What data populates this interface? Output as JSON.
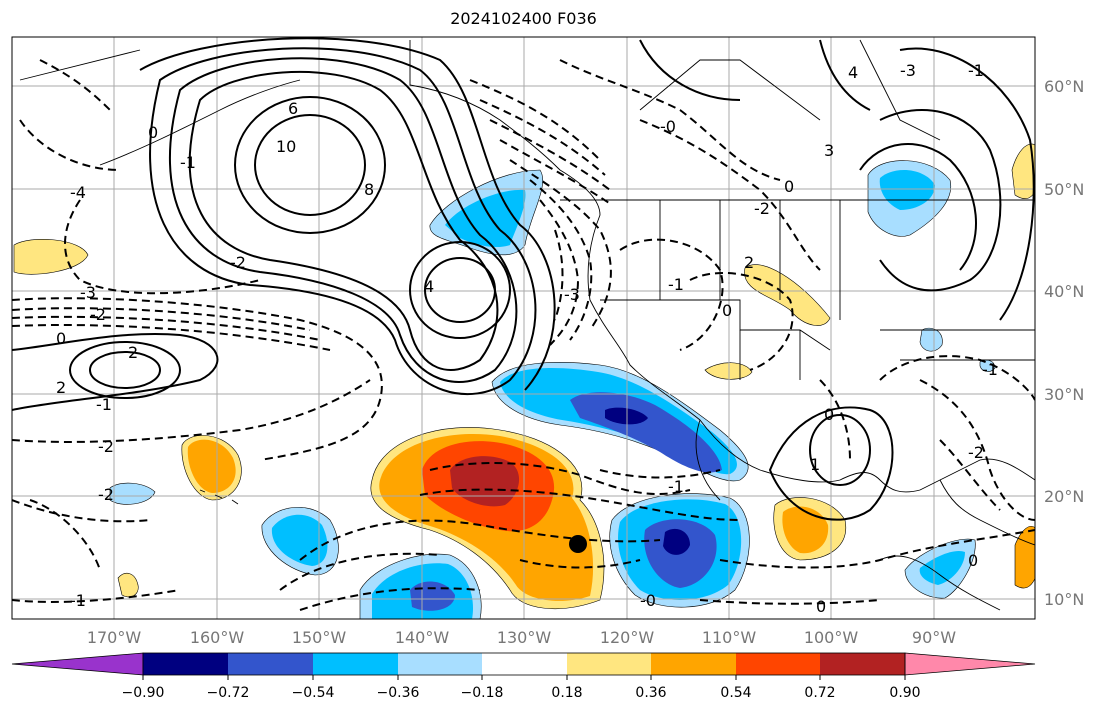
{
  "title": "2024102400 F036",
  "map": {
    "latitude_labels": [
      "60°N",
      "50°N",
      "40°N",
      "30°N",
      "20°N",
      "10°N"
    ],
    "longitude_labels": [
      "170°W",
      "160°W",
      "150°W",
      "140°W",
      "130°W",
      "120°W",
      "110°W",
      "100°W",
      "90°W"
    ],
    "marker": "storm-position-dot",
    "contour_labels": [
      "10",
      "8",
      "6",
      "4",
      "2",
      "0",
      "-4",
      "-3",
      "-2",
      "-1",
      "0",
      "-2",
      "-1",
      "2",
      "0",
      "-2",
      "-3",
      "-1",
      "-0",
      "2",
      "-1",
      "0",
      "-2",
      "-1",
      "0",
      "-3",
      "-1",
      "0",
      "-2",
      "4",
      "3",
      "1",
      "0",
      "-2",
      "-1",
      "-0"
    ]
  },
  "colorbar": {
    "tick_labels": [
      "−0.90",
      "−0.72",
      "−0.54",
      "−0.36",
      "−0.18",
      "0.18",
      "0.36",
      "0.54",
      "0.72",
      "0.90"
    ],
    "colors": [
      "#9933cc",
      "#000080",
      "#3355cc",
      "#00bfff",
      "#a8deff",
      "#ffffff",
      "#ffe680",
      "#ffa500",
      "#ff4500",
      "#b22222",
      "#ff88aa"
    ]
  }
}
